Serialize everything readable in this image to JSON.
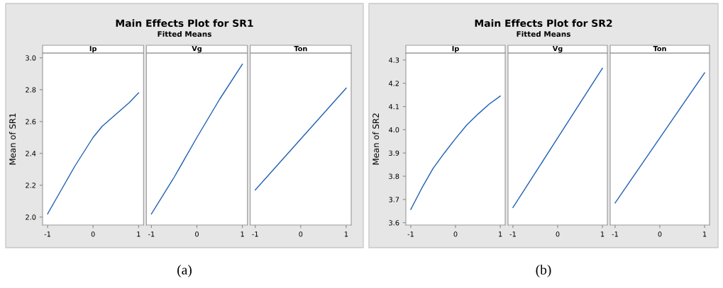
{
  "chart_data": [
    {
      "type": "line",
      "xlabel": "Ip",
      "ylabel": "Mean of SR1",
      "x": [
        -1,
        -0.8,
        -0.6,
        -0.4,
        -0.2,
        0,
        0.2,
        0.4,
        0.6,
        0.8,
        1
      ],
      "values": [
        2.02,
        2.12,
        2.22,
        2.32,
        2.41,
        2.5,
        2.57,
        2.62,
        2.67,
        2.72,
        2.78
      ],
      "color": "#1f5fb4",
      "xlim": [
        -1.11,
        1.11
      ],
      "xticks": [
        -1,
        0,
        1
      ],
      "ylim": [
        1.95,
        3.03
      ],
      "yticks": [
        {
          "value": 2.0,
          "label": "2.0"
        },
        2.2,
        2.4,
        2.6,
        2.8,
        {
          "value": 3.0,
          "label": "3.0"
        }
      ],
      "annotations": [
        "(a)"
      ]
    },
    {
      "type": "line",
      "title": "Main Effects Plot for SR1",
      "subtitle": "Fitted Means",
      "xlabel": "Vg",
      "x": [
        -1,
        -0.5,
        0,
        0.5,
        1
      ],
      "values": [
        2.02,
        2.25,
        2.5,
        2.74,
        2.96
      ],
      "color": "#1f5fb4",
      "xlim": [
        -1.11,
        1.11
      ],
      "xticks": [
        -1,
        0,
        1
      ],
      "ylim": [
        1.95,
        3.03
      ],
      "tick_labels": "x"
    },
    {
      "type": "line",
      "xlabel": "Ton",
      "x": [
        -1,
        -0.5,
        0,
        0.5,
        1
      ],
      "values": [
        2.17,
        2.33,
        2.49,
        2.65,
        2.81
      ],
      "color": "#1f5fb4",
      "xlim": [
        -1.11,
        1.11
      ],
      "xticks": [
        -1,
        0,
        1
      ],
      "ylim": [
        1.95,
        3.03
      ],
      "tick_labels": "x"
    },
    {
      "type": "line",
      "xlabel": "Ip",
      "ylabel": "Mean of SR2",
      "x": [
        -1,
        -0.75,
        -0.5,
        -0.25,
        0,
        0.25,
        0.5,
        0.75,
        1
      ],
      "values": [
        3.657,
        3.75,
        3.834,
        3.9,
        3.962,
        4.02,
        4.067,
        4.11,
        4.145
      ],
      "color": "#1f5fb4",
      "xlim": [
        -1.11,
        1.11
      ],
      "xticks": [
        -1,
        0,
        1
      ],
      "ylim": [
        3.59,
        4.33
      ],
      "yticks": [
        3.6,
        3.7,
        3.8,
        3.9,
        {
          "value": 4.0,
          "label": "4.0"
        },
        4.1,
        4.2,
        4.3
      ],
      "annotations": [
        "(b)"
      ]
    },
    {
      "type": "line",
      "title": "Main Effects Plot for SR2",
      "subtitle": "Fitted Means",
      "xlabel": "Vg",
      "x": [
        -1,
        -0.5,
        0,
        0.5,
        1
      ],
      "values": [
        3.665,
        3.815,
        3.965,
        4.115,
        4.265
      ],
      "color": "#1f5fb4",
      "xlim": [
        -1.11,
        1.11
      ],
      "xticks": [
        -1,
        0,
        1
      ],
      "ylim": [
        3.59,
        4.33
      ],
      "tick_labels": "x"
    },
    {
      "type": "line",
      "xlabel": "Ton",
      "x": [
        -1,
        -0.5,
        0,
        0.5,
        1
      ],
      "values": [
        3.685,
        3.825,
        3.965,
        4.105,
        4.245
      ],
      "color": "#1f5fb4",
      "xlim": [
        -1.11,
        1.11
      ],
      "xticks": [
        -1,
        0,
        1
      ],
      "ylim": [
        3.59,
        4.33
      ],
      "tick_labels": "x"
    }
  ]
}
